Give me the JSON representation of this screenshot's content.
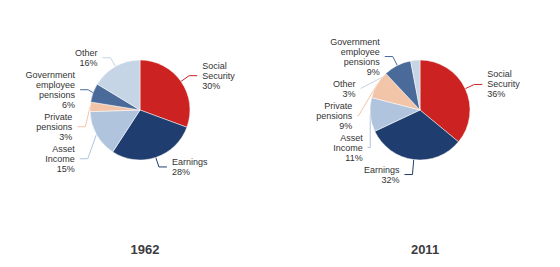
{
  "chart_data": [
    {
      "type": "pie",
      "title": "1962",
      "categories": [
        "Social\nSecurity",
        "Earnings",
        "Asset\nIncome",
        "Private\npensions",
        "Government\nemployee\npensions",
        "Other"
      ],
      "values": [
        30,
        28,
        15,
        3,
        6,
        16
      ],
      "value_labels": [
        "30%",
        "28%",
        "15%",
        "3%",
        "6%",
        "16%"
      ],
      "colors": [
        "#cc2222",
        "#1f3d6e",
        "#b0c4de",
        "#f2c4a8",
        "#4a6a9a",
        "#c5d5e5"
      ],
      "data_labels": true
    },
    {
      "type": "pie",
      "title": "2011",
      "categories": [
        "Social\nSecurity",
        "Earnings",
        "Asset\nIncome",
        "Private\npensions",
        "Government\nemployee\npensions",
        "Other"
      ],
      "values": [
        36,
        32,
        11,
        9,
        9,
        3
      ],
      "value_labels": [
        "36%",
        "32%",
        "11%",
        "9%",
        "9%",
        "3%"
      ],
      "colors": [
        "#cc2222",
        "#1f3d6e",
        "#b0c4de",
        "#f2c4a8",
        "#4a6a9a",
        "#c5d5e5"
      ],
      "data_labels": true
    }
  ]
}
